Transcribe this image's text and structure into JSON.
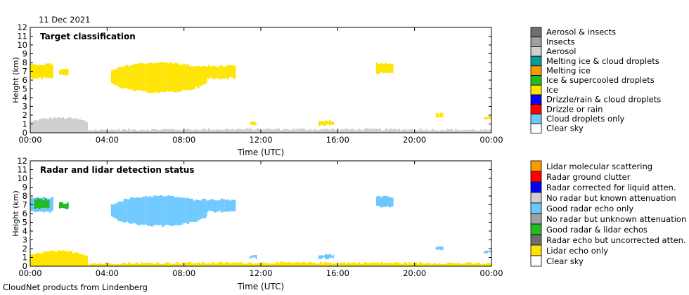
{
  "date_label": "11 Dec 2021",
  "footer": "CloudNet products from Lindenberg",
  "chart_data": [
    {
      "type": "heatmap",
      "title": "Target classification",
      "xlabel": "Time (UTC)",
      "ylabel": "Height (km)",
      "xlim": [
        0,
        24
      ],
      "ylim": [
        0,
        12
      ],
      "x_ticks": [
        "00:00",
        "04:00",
        "08:00",
        "12:00",
        "16:00",
        "20:00",
        "00:00"
      ],
      "y_ticks": [
        "0",
        "1",
        "2",
        "3",
        "4",
        "5",
        "6",
        "7",
        "8",
        "9",
        "10",
        "11",
        "12"
      ],
      "grid": false,
      "legend_position": "right",
      "legend": [
        {
          "label": "Aerosol & insects",
          "color": "#6e6e6e"
        },
        {
          "label": "Insects",
          "color": "#a0a0a0"
        },
        {
          "label": "Aerosol",
          "color": "#cfcfcf"
        },
        {
          "label": "Melting ice & cloud droplets",
          "color": "#009e96"
        },
        {
          "label": "Melting ice",
          "color": "#ff9900"
        },
        {
          "label": "Ice & supercooled droplets",
          "color": "#22bb22"
        },
        {
          "label": "Ice",
          "color": "#ffe400"
        },
        {
          "label": "Drizzle/rain & cloud droplets",
          "color": "#0000ff"
        },
        {
          "label": "Drizzle or rain",
          "color": "#ff0000"
        },
        {
          "label": "Cloud droplets only",
          "color": "#6cc8ff"
        },
        {
          "label": "Clear sky",
          "color": "#ffffff"
        }
      ],
      "regions": [
        {
          "class": "Aerosol",
          "color": "#cfcfcf",
          "t0": 0.0,
          "t1": 3.0,
          "h0": 0.0,
          "h1": 1.7
        },
        {
          "class": "Aerosol",
          "color": "#cfcfcf",
          "t0": 3.0,
          "t1": 24.0,
          "h0": 0.05,
          "h1": 0.4
        },
        {
          "class": "Ice",
          "color": "#ffe400",
          "t0": 0.0,
          "t1": 1.2,
          "h0": 6.2,
          "h1": 7.8
        },
        {
          "class": "Ice",
          "color": "#ffe400",
          "t0": 1.5,
          "t1": 2.0,
          "h0": 6.6,
          "h1": 7.2
        },
        {
          "class": "Ice",
          "color": "#ffe400",
          "t0": 4.2,
          "t1": 9.2,
          "h0": 4.6,
          "h1": 8.0
        },
        {
          "class": "Ice",
          "color": "#ffe400",
          "t0": 8.7,
          "t1": 10.7,
          "h0": 6.2,
          "h1": 7.6
        },
        {
          "class": "Ice",
          "color": "#ffe400",
          "t0": 11.4,
          "t1": 11.8,
          "h0": 0.9,
          "h1": 1.2
        },
        {
          "class": "Ice",
          "color": "#ffe400",
          "t0": 15.0,
          "t1": 15.8,
          "h0": 0.9,
          "h1": 1.3
        },
        {
          "class": "Ice",
          "color": "#ffe400",
          "t0": 18.0,
          "t1": 18.9,
          "h0": 6.8,
          "h1": 7.9
        },
        {
          "class": "Ice",
          "color": "#ffe400",
          "t0": 21.1,
          "t1": 21.5,
          "h0": 1.8,
          "h1": 2.2
        },
        {
          "class": "Ice",
          "color": "#ffe400",
          "t0": 23.6,
          "t1": 24.0,
          "h0": 1.5,
          "h1": 1.8
        }
      ]
    },
    {
      "type": "heatmap",
      "title": "Radar and lidar detection status",
      "xlabel": "Time (UTC)",
      "ylabel": "Height (km)",
      "xlim": [
        0,
        24
      ],
      "ylim": [
        0,
        12
      ],
      "x_ticks": [
        "00:00",
        "04:00",
        "08:00",
        "12:00",
        "16:00",
        "20:00",
        "00:00"
      ],
      "y_ticks": [
        "0",
        "1",
        "2",
        "3",
        "4",
        "5",
        "6",
        "7",
        "8",
        "9",
        "10",
        "11",
        "12"
      ],
      "grid": false,
      "legend_position": "right",
      "legend": [
        {
          "label": "Lidar molecular scattering",
          "color": "#ff9900"
        },
        {
          "label": "Radar ground clutter",
          "color": "#ff0000"
        },
        {
          "label": "Radar corrected for liquid atten.",
          "color": "#0000ff"
        },
        {
          "label": "No radar but known attenuation",
          "color": "#cfcfcf"
        },
        {
          "label": "Good radar echo only",
          "color": "#6cc8ff"
        },
        {
          "label": "No radar but unknown attenuation",
          "color": "#a0a0a0"
        },
        {
          "label": "Good radar & lidar echos",
          "color": "#22bb22"
        },
        {
          "label": "Radar echo but uncorrected atten.",
          "color": "#6e6e6e"
        },
        {
          "label": "Lidar echo only",
          "color": "#ffe400"
        },
        {
          "label": "Clear sky",
          "color": "#ffffff"
        }
      ],
      "regions": [
        {
          "class": "Lidar echo only",
          "color": "#ffe400",
          "t0": 0.0,
          "t1": 3.0,
          "h0": 0.0,
          "h1": 1.7
        },
        {
          "class": "Lidar echo only",
          "color": "#ffe400",
          "t0": 3.0,
          "t1": 24.0,
          "h0": 0.05,
          "h1": 0.4
        },
        {
          "class": "Good radar echo only",
          "color": "#6cc8ff",
          "t0": 0.0,
          "t1": 1.2,
          "h0": 6.2,
          "h1": 7.8
        },
        {
          "class": "Good radar & lidar echos",
          "color": "#22bb22",
          "t0": 0.2,
          "t1": 1.0,
          "h0": 6.6,
          "h1": 7.6
        },
        {
          "class": "Good radar & lidar echos",
          "color": "#22bb22",
          "t0": 1.5,
          "t1": 2.0,
          "h0": 6.6,
          "h1": 7.2
        },
        {
          "class": "Good radar echo only",
          "color": "#6cc8ff",
          "t0": 4.2,
          "t1": 9.2,
          "h0": 4.6,
          "h1": 8.0
        },
        {
          "class": "Good radar echo only",
          "color": "#6cc8ff",
          "t0": 8.7,
          "t1": 10.7,
          "h0": 6.2,
          "h1": 7.6
        },
        {
          "class": "Good radar echo only",
          "color": "#6cc8ff",
          "t0": 11.4,
          "t1": 11.8,
          "h0": 0.9,
          "h1": 1.2
        },
        {
          "class": "Good radar echo only",
          "color": "#6cc8ff",
          "t0": 15.0,
          "t1": 15.8,
          "h0": 0.9,
          "h1": 1.3
        },
        {
          "class": "Good radar echo only",
          "color": "#6cc8ff",
          "t0": 18.0,
          "t1": 18.9,
          "h0": 6.8,
          "h1": 7.9
        },
        {
          "class": "Good radar echo only",
          "color": "#6cc8ff",
          "t0": 21.1,
          "t1": 21.5,
          "h0": 1.8,
          "h1": 2.2
        },
        {
          "class": "Good radar echo only",
          "color": "#6cc8ff",
          "t0": 23.6,
          "t1": 24.0,
          "h0": 1.5,
          "h1": 1.8
        }
      ]
    }
  ]
}
